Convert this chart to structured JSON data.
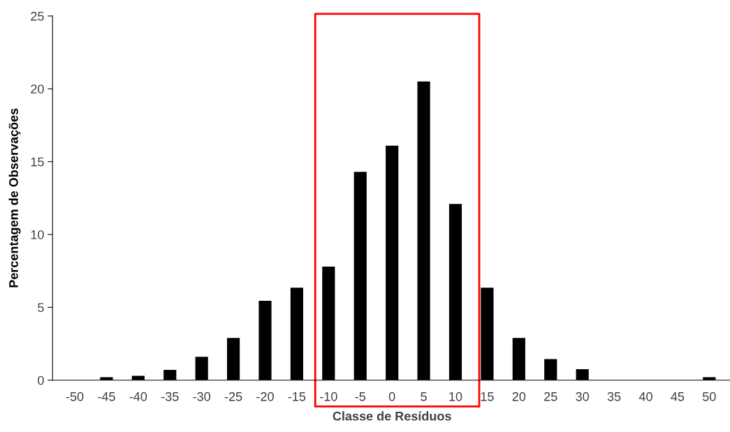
{
  "chart_data": {
    "type": "bar",
    "xlabel": "Classe de Resíduos",
    "ylabel": "Percentagem de Observações",
    "categories": [
      "-50",
      "-45",
      "-40",
      "-35",
      "-30",
      "-25",
      "-20",
      "-15",
      "-10",
      "-5",
      "0",
      "5",
      "10",
      "15",
      "20",
      "25",
      "30",
      "35",
      "40",
      "45",
      "50"
    ],
    "values": [
      0,
      0.2,
      0.3,
      0.7,
      1.6,
      2.9,
      5.45,
      6.35,
      7.8,
      14.3,
      16.1,
      20.5,
      12.1,
      6.35,
      2.9,
      1.45,
      0.75,
      0,
      0,
      0,
      0.2
    ],
    "color": "#000000",
    "ylim": [
      0,
      25
    ],
    "yticks": [
      0,
      5,
      10,
      15,
      20,
      25
    ],
    "grid": false
  }
}
